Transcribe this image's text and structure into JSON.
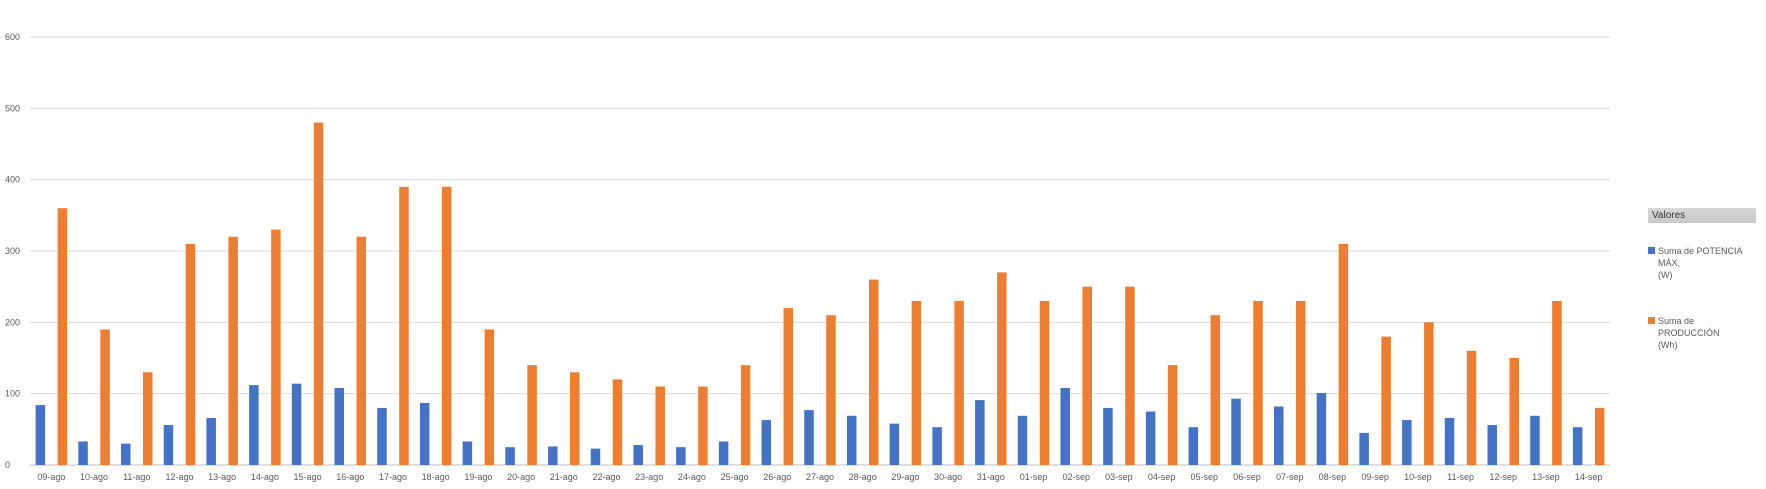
{
  "chart_data": {
    "type": "bar",
    "title": "",
    "xlabel": "",
    "ylabel": "",
    "ylim": [
      0,
      600
    ],
    "yticks": [
      0,
      100,
      200,
      300,
      400,
      500,
      600
    ],
    "grid": true,
    "legend_position": "right",
    "legend_title": "Valores",
    "categories": [
      "09-ago",
      "10-ago",
      "11-ago",
      "12-ago",
      "13-ago",
      "14-ago",
      "15-ago",
      "16-ago",
      "17-ago",
      "18-ago",
      "19-ago",
      "20-ago",
      "21-ago",
      "22-ago",
      "23-ago",
      "24-ago",
      "25-ago",
      "26-ago",
      "27-ago",
      "28-ago",
      "29-ago",
      "30-ago",
      "31-ago",
      "01-sep",
      "02-sep",
      "03-sep",
      "04-sep",
      "05-sep",
      "06-sep",
      "07-sep",
      "08-sep",
      "09-sep",
      "10-sep",
      "11-sep",
      "12-sep",
      "13-sep",
      "14-sep"
    ],
    "series": [
      {
        "name_lines": [
          "Suma de POTENCIA",
          "MÁX,",
          "(W)"
        ],
        "color": "#4472c4",
        "values": [
          84,
          33,
          30,
          56,
          66,
          112,
          114,
          108,
          80,
          87,
          33,
          25,
          26,
          23,
          28,
          25,
          33,
          63,
          77,
          69,
          58,
          53,
          91,
          69,
          108,
          80,
          75,
          53,
          93,
          82,
          101,
          45,
          63,
          66,
          56,
          69,
          53
        ]
      },
      {
        "name_lines": [
          "Suma de PRODUCCIÓN",
          "(Wh)"
        ],
        "color": "#ed7d31",
        "values": [
          360,
          190,
          130,
          310,
          320,
          330,
          480,
          320,
          390,
          390,
          190,
          140,
          130,
          120,
          110,
          110,
          140,
          220,
          210,
          260,
          230,
          230,
          270,
          230,
          250,
          250,
          140,
          210,
          230,
          230,
          310,
          180,
          200,
          160,
          150,
          230,
          80
        ]
      }
    ]
  }
}
